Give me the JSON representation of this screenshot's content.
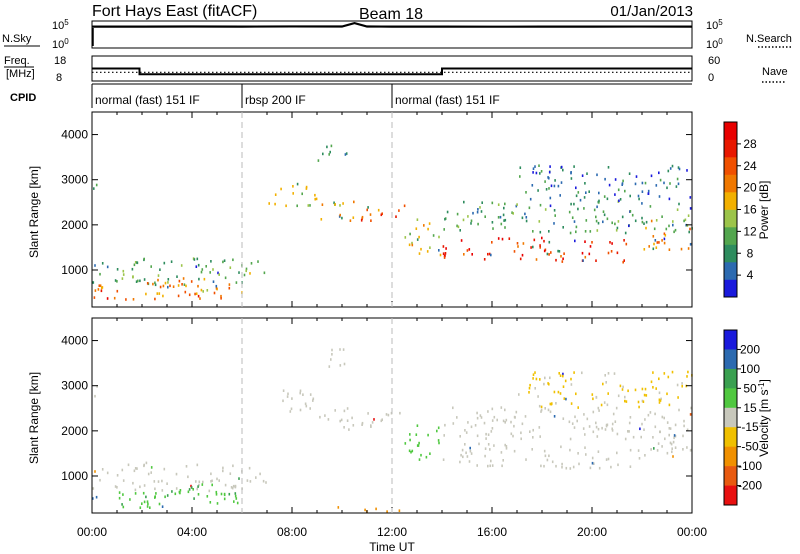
{
  "header": {
    "title": "Fort Hays East (fitACF)",
    "beam": "Beam 18",
    "date": "01/Jan/2013"
  },
  "sky_panel": {
    "left_label": "N.Sky",
    "right_label": "N.Search",
    "left_ticks": [
      "10^5",
      "10^0"
    ],
    "right_ticks": [
      "10^5",
      "10^0"
    ]
  },
  "freq_panel": {
    "left_label_1": "Freq.",
    "left_label_2": "[MHz]",
    "right_label": "Nave",
    "left_ticks": [
      "18",
      "8"
    ],
    "right_ticks": [
      "60",
      "0"
    ]
  },
  "cpid": {
    "label": "CPID",
    "segments": [
      {
        "start_hour": 0,
        "end_hour": 6,
        "text": "normal (fast) 151 IF"
      },
      {
        "start_hour": 6,
        "end_hour": 12,
        "text": "rbsp 200 IF"
      },
      {
        "start_hour": 12,
        "end_hour": 24,
        "text": "normal (fast) 151 IF"
      }
    ]
  },
  "colors": {
    "power_scale": [
      "#1a1adc",
      "#2c6ab0",
      "#2e8c5e",
      "#53a64e",
      "#9cc44a",
      "#f2b000",
      "#f07800",
      "#f05000",
      "#e81800",
      "#e80000"
    ],
    "velocity_scale": [
      "#e81010",
      "#e85a10",
      "#f09000",
      "#f0c000",
      "#c8c8bc",
      "#50c840",
      "#3aa050",
      "#2c6ab0",
      "#1a1adc"
    ]
  },
  "chart_data": [
    {
      "type": "line",
      "title": "",
      "ylabel": "N.Sky",
      "x_range_hours": [
        0,
        24
      ],
      "y_scale": "log",
      "ylim": [
        1,
        100000
      ],
      "series": [
        {
          "name": "N.Sky",
          "x": [
            0,
            2,
            4,
            6,
            8,
            10,
            10.5,
            11,
            12,
            14,
            16,
            18,
            20,
            22,
            24
          ],
          "values": [
            12000,
            12000,
            12500,
            12000,
            13000,
            12500,
            60000,
            12500,
            12000,
            12000,
            11500,
            12000,
            11800,
            12200,
            12000
          ]
        }
      ]
    },
    {
      "type": "line",
      "title": "",
      "ylabel": "Freq. [MHz]",
      "y2label": "Nave",
      "x_range_hours": [
        0,
        24
      ],
      "ylim": [
        8,
        18
      ],
      "y2lim": [
        0,
        60
      ],
      "series": [
        {
          "name": "Freq.",
          "x": [
            0,
            1.9,
            1.9,
            14,
            14,
            24
          ],
          "values": [
            13,
            13,
            10.5,
            10.5,
            13,
            13
          ]
        },
        {
          "name": "Nave",
          "x": [
            0,
            24
          ],
          "values": [
            20,
            20
          ]
        }
      ]
    },
    {
      "type": "heatmap",
      "xlabel": "Time UT",
      "ylabel": "Slant Range [km]",
      "colorbar_label": "Power [dB]",
      "colorbar_ticks": [
        "4",
        "8",
        "12",
        "16",
        "20",
        "24",
        "28"
      ],
      "x_ticks": [
        "00:00",
        "04:00",
        "08:00",
        "12:00",
        "16:00",
        "20:00",
        "00:00"
      ],
      "x_tick_hours": [
        0,
        4,
        8,
        12,
        16,
        20,
        24
      ],
      "y_ticks": [
        "1000",
        "2000",
        "3000",
        "4000"
      ],
      "y_tick_values": [
        1000,
        2000,
        3000,
        4000
      ],
      "ylim": [
        180,
        4500
      ],
      "color_range": [
        0,
        32
      ],
      "scatter_regions": [
        {
          "t": [
            0.0,
            1.0
          ],
          "r": [
            700,
            1150
          ],
          "power": 8
        },
        {
          "t": [
            1.0,
            3.0
          ],
          "r": [
            600,
            1300
          ],
          "power": 10
        },
        {
          "t": [
            3.0,
            6.0
          ],
          "r": [
            650,
            1250
          ],
          "power": 12
        },
        {
          "t": [
            6.0,
            7.0
          ],
          "r": [
            800,
            1200
          ],
          "power": 14
        },
        {
          "t": [
            0.0,
            6.0
          ],
          "r": [
            350,
            650
          ],
          "power": 22
        },
        {
          "t": [
            0.0,
            3.5
          ],
          "r": [
            280,
            380
          ],
          "power": 27
        },
        {
          "t": [
            2.0,
            5.5
          ],
          "r": [
            500,
            800
          ],
          "power": 20
        },
        {
          "t": [
            7.0,
            9.0
          ],
          "r": [
            2400,
            2900
          ],
          "power": 14
        },
        {
          "t": [
            9.0,
            10.5
          ],
          "r": [
            2000,
            2500
          ],
          "power": 18
        },
        {
          "t": [
            10.5,
            12.5
          ],
          "r": [
            2050,
            2450
          ],
          "power": 22
        },
        {
          "t": [
            12.5,
            14.0
          ],
          "r": [
            1300,
            2100
          ],
          "power": 16
        },
        {
          "t": [
            14.0,
            18.0
          ],
          "r": [
            1200,
            1700
          ],
          "power": 26
        },
        {
          "t": [
            18.0,
            22.0
          ],
          "r": [
            1150,
            1650
          ],
          "power": 27
        },
        {
          "t": [
            22.0,
            24.0
          ],
          "r": [
            1400,
            2100
          ],
          "power": 20
        },
        {
          "t": [
            14.0,
            24.0
          ],
          "r": [
            1800,
            2500
          ],
          "power": 10
        },
        {
          "t": [
            9.0,
            10.2
          ],
          "r": [
            3400,
            3800
          ],
          "power": 8
        },
        {
          "t": [
            0.0,
            0.3
          ],
          "r": [
            2600,
            3000
          ],
          "power": 10
        },
        {
          "t": [
            17.0,
            24.0
          ],
          "r": [
            2500,
            3300
          ],
          "power": 6
        }
      ]
    },
    {
      "type": "heatmap",
      "xlabel": "Time UT",
      "ylabel": "Slant Range [km]",
      "colorbar_label": "Velocity [m s^-1]",
      "colorbar_ticks": [
        "200",
        "100",
        "50",
        "15",
        "-15",
        "-50",
        "-100",
        "-200"
      ],
      "x_ticks": [
        "00:00",
        "04:00",
        "08:00",
        "12:00",
        "16:00",
        "20:00",
        "00:00"
      ],
      "x_tick_hours": [
        0,
        4,
        8,
        12,
        16,
        20,
        24
      ],
      "y_ticks": [
        "1000",
        "2000",
        "3000",
        "4000"
      ],
      "y_tick_values": [
        1000,
        2000,
        3000,
        4000
      ],
      "ylim": [
        180,
        4500
      ],
      "color_range": [
        -250,
        250
      ],
      "scatter_regions": [
        {
          "t": [
            0.0,
            1.0
          ],
          "r": [
            700,
            1150
          ],
          "vel": 0
        },
        {
          "t": [
            1.0,
            3.0
          ],
          "r": [
            600,
            1300
          ],
          "vel": 0
        },
        {
          "t": [
            3.0,
            6.0
          ],
          "r": [
            650,
            1250
          ],
          "vel": 0
        },
        {
          "t": [
            6.0,
            7.0
          ],
          "r": [
            800,
            1200
          ],
          "vel": 0
        },
        {
          "t": [
            0.0,
            6.0
          ],
          "r": [
            350,
            650
          ],
          "vel": 40
        },
        {
          "t": [
            0.0,
            3.5
          ],
          "r": [
            280,
            380
          ],
          "vel": 30
        },
        {
          "t": [
            2.0,
            5.5
          ],
          "r": [
            500,
            800
          ],
          "vel": 45
        },
        {
          "t": [
            7.0,
            9.0
          ],
          "r": [
            2400,
            2900
          ],
          "vel": 0
        },
        {
          "t": [
            9.0,
            10.5
          ],
          "r": [
            2000,
            2500
          ],
          "vel": 0
        },
        {
          "t": [
            10.5,
            12.5
          ],
          "r": [
            2050,
            2450
          ],
          "vel": 0
        },
        {
          "t": [
            12.5,
            14.0
          ],
          "r": [
            1300,
            2100
          ],
          "vel": 30
        },
        {
          "t": [
            14.0,
            18.0
          ],
          "r": [
            1200,
            1700
          ],
          "vel": 0
        },
        {
          "t": [
            18.0,
            22.0
          ],
          "r": [
            1150,
            1650
          ],
          "vel": 0
        },
        {
          "t": [
            22.0,
            24.0
          ],
          "r": [
            1400,
            2100
          ],
          "vel": 0
        },
        {
          "t": [
            14.0,
            24.0
          ],
          "r": [
            1800,
            2500
          ],
          "vel": 0
        },
        {
          "t": [
            9.0,
            10.2
          ],
          "r": [
            3400,
            3800
          ],
          "vel": 0
        },
        {
          "t": [
            0.0,
            0.3
          ],
          "r": [
            2600,
            3000
          ],
          "vel": 0
        },
        {
          "t": [
            9.5,
            12.5
          ],
          "r": [
            180,
            300
          ],
          "vel": -70
        },
        {
          "t": [
            17.0,
            24.0
          ],
          "r": [
            2500,
            3300
          ],
          "vel": -20
        }
      ]
    }
  ]
}
